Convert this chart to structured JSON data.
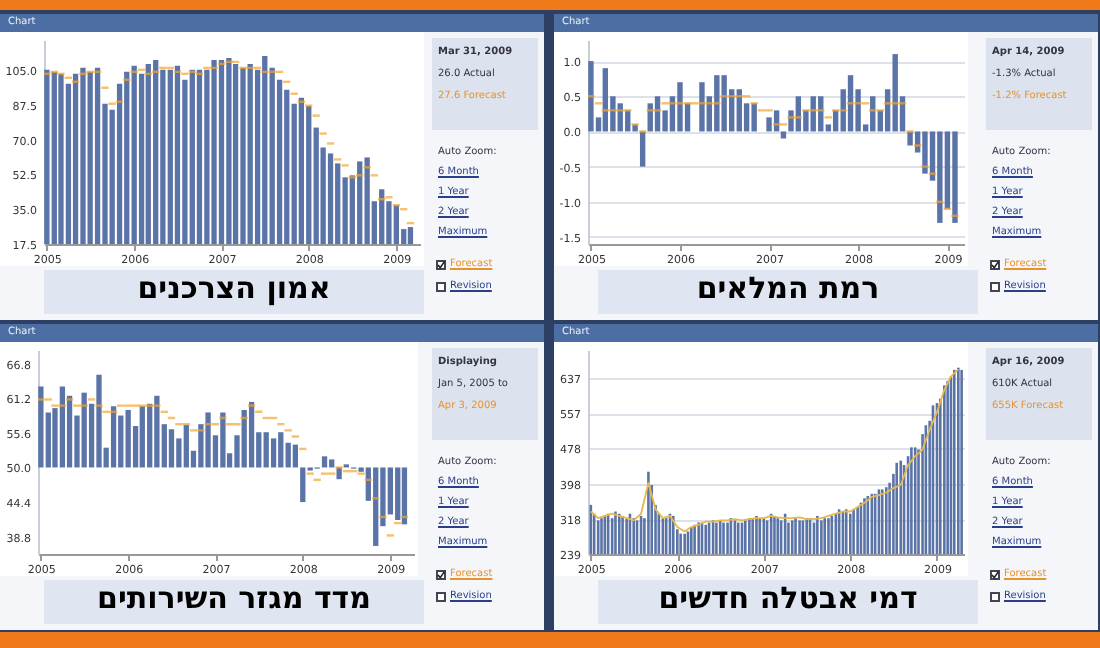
{
  "chart_data": [
    {
      "type": "bar",
      "title": "אמון הצרכנים",
      "x": [
        "2005-01",
        "2005-02",
        "2005-03",
        "2005-04",
        "2005-05",
        "2005-06",
        "2005-07",
        "2005-08",
        "2005-09",
        "2005-10",
        "2005-11",
        "2005-12",
        "2006-01",
        "2006-02",
        "2006-03",
        "2006-04",
        "2006-05",
        "2006-06",
        "2006-07",
        "2006-08",
        "2006-09",
        "2006-10",
        "2006-11",
        "2006-12",
        "2007-01",
        "2007-02",
        "2007-03",
        "2007-04",
        "2007-05",
        "2007-06",
        "2007-07",
        "2007-08",
        "2007-09",
        "2007-10",
        "2007-11",
        "2007-12",
        "2008-01",
        "2008-02",
        "2008-03",
        "2008-04",
        "2008-05",
        "2008-06",
        "2008-07",
        "2008-08",
        "2008-09",
        "2008-10",
        "2008-11",
        "2008-12",
        "2009-01",
        "2009-02",
        "2009-03"
      ],
      "series": [
        {
          "color": "#5b74a8",
          "values": [
            105,
            104,
            103,
            98,
            103,
            106,
            104,
            106,
            88,
            85,
            98,
            104,
            107,
            103,
            108,
            110,
            105,
            105,
            107,
            100,
            105,
            105,
            105,
            110,
            110,
            111,
            108,
            106,
            108,
            105,
            112,
            106,
            100,
            95,
            88,
            91,
            87,
            76,
            66,
            63,
            58,
            51,
            52,
            59,
            61,
            39,
            45,
            39,
            37,
            25,
            26
          ]
        },
        {
          "type": "scatter",
          "color": "#f2a530",
          "values": [
            103,
            104,
            103,
            101,
            99,
            103,
            104,
            104,
            96,
            88,
            89,
            100,
            104,
            105,
            103,
            104,
            106,
            106,
            104,
            103,
            104,
            103,
            106,
            106,
            108,
            109,
            109,
            106,
            106,
            106,
            104,
            104,
            104,
            99,
            93,
            89,
            87,
            82,
            73,
            68,
            60,
            57,
            51,
            52,
            56,
            52,
            40,
            41,
            37,
            35,
            28
          ]
        }
      ],
      "xlim": [
        "2004-12-20",
        "2009-04-10"
      ],
      "xticks": [
        "2005",
        "2006",
        "2007",
        "2008",
        "2009"
      ],
      "ylim": [
        17.5,
        120
      ],
      "yticks": [
        17.5,
        {
          "value": 35,
          "label": "35.0"
        },
        52.5,
        {
          "value": 70,
          "label": "70.0"
        },
        87.5,
        {
          "value": 105,
          "label": "105.0"
        }
      ],
      "annotations": [
        "Chart",
        "Mar 31, 2009",
        "26.0 Actual",
        "27.6 Forecast",
        "Auto Zoom:",
        "6 Month",
        "1 Year",
        "2 Year",
        "Maximum",
        "Forecast",
        "Revision"
      ]
    },
    {
      "type": "bar",
      "title": "רמת המלאים",
      "x": [
        "2005-01",
        "2005-02",
        "2005-03",
        "2005-04",
        "2005-05",
        "2005-06",
        "2005-07",
        "2005-08",
        "2005-09",
        "2005-10",
        "2005-11",
        "2005-12",
        "2006-01",
        "2006-02",
        "2006-03",
        "2006-04",
        "2006-05",
        "2006-06",
        "2006-07",
        "2006-08",
        "2006-09",
        "2006-10",
        "2006-11",
        "2006-12",
        "2007-01",
        "2007-02",
        "2007-03",
        "2007-04",
        "2007-05",
        "2007-06",
        "2007-07",
        "2007-08",
        "2007-09",
        "2007-10",
        "2007-11",
        "2007-12",
        "2008-01",
        "2008-02",
        "2008-03",
        "2008-04",
        "2008-05",
        "2008-06",
        "2008-07",
        "2008-08",
        "2008-09",
        "2008-10",
        "2008-11",
        "2008-12",
        "2009-01",
        "2009-02"
      ],
      "series": [
        {
          "color": "#5b74a8",
          "values": [
            1.0,
            0.2,
            0.9,
            0.5,
            0.4,
            0.3,
            0.1,
            -0.5,
            0.4,
            0.5,
            0.3,
            0.5,
            0.7,
            0.4,
            0.0,
            0.7,
            0.5,
            0.8,
            0.8,
            0.6,
            0.6,
            0.4,
            0.4,
            0.0,
            0.2,
            0.3,
            -0.1,
            0.3,
            0.5,
            0.3,
            0.5,
            0.5,
            0.1,
            0.3,
            0.6,
            0.8,
            0.6,
            0.1,
            0.5,
            0.3,
            0.6,
            1.1,
            0.5,
            -0.2,
            -0.3,
            -0.6,
            -0.7,
            -1.3,
            -1.1,
            -1.3
          ]
        },
        {
          "type": "scatter",
          "color": "#f2a530",
          "values": [
            0.5,
            0.4,
            0.3,
            0.3,
            0.3,
            0.3,
            0.1,
            0.0,
            0.3,
            0.3,
            0.4,
            0.4,
            0.4,
            0.4,
            0.4,
            0.4,
            0.4,
            0.4,
            0.5,
            0.5,
            0.5,
            0.5,
            0.4,
            0.3,
            0.3,
            0.1,
            0.1,
            0.2,
            0.2,
            0.3,
            0.3,
            0.3,
            0.2,
            0.3,
            0.3,
            0.4,
            0.4,
            0.4,
            0.3,
            0.3,
            0.4,
            0.4,
            0.4,
            0.0,
            -0.2,
            -0.5,
            -0.6,
            -1.0,
            -1.1,
            -1.2
          ]
        }
      ],
      "xlim": [
        "2004-12-20",
        "2009-03-10"
      ],
      "xticks": [
        "2005",
        "2006",
        "2007",
        "2008",
        "2009"
      ],
      "ylim": [
        -1.6,
        1.3
      ],
      "yticks": [
        -1.5,
        {
          "value": -1,
          "label": "-1.0"
        },
        -0.5,
        {
          "value": 0,
          "label": "0.0"
        },
        0.5,
        {
          "value": 1,
          "label": "1.0"
        }
      ],
      "grid": "y",
      "annotations": [
        "Chart",
        "Apr 14, 2009",
        "-1.3% Actual",
        "-1.2% Forecast",
        "Auto Zoom:",
        "6 Month",
        "1 Year",
        "2 Year",
        "Maximum",
        "Forecast",
        "Revision"
      ]
    },
    {
      "type": "bar",
      "title": "מדד מגזר השירותים",
      "x": [
        "2005-01",
        "2005-02",
        "2005-03",
        "2005-04",
        "2005-05",
        "2005-06",
        "2005-07",
        "2005-08",
        "2005-09",
        "2005-10",
        "2005-11",
        "2005-12",
        "2006-01",
        "2006-02",
        "2006-03",
        "2006-04",
        "2006-05",
        "2006-06",
        "2006-07",
        "2006-08",
        "2006-09",
        "2006-10",
        "2006-11",
        "2006-12",
        "2007-01",
        "2007-02",
        "2007-03",
        "2007-04",
        "2007-05",
        "2007-06",
        "2007-07",
        "2007-08",
        "2007-09",
        "2007-10",
        "2007-11",
        "2007-12",
        "2008-01",
        "2008-02",
        "2008-03",
        "2008-04",
        "2008-05",
        "2008-06",
        "2008-07",
        "2008-08",
        "2008-09",
        "2008-10",
        "2008-11",
        "2008-12",
        "2009-01",
        "2009-02",
        "2009-03"
      ],
      "series": [
        {
          "color": "#5b74a8",
          "base": [
            50,
            50,
            50,
            50,
            50,
            50,
            50,
            50,
            50,
            50,
            50,
            50,
            50,
            50,
            50,
            50,
            50,
            50,
            50,
            50,
            50,
            50,
            50,
            50,
            50,
            50,
            50,
            50,
            50,
            50,
            50,
            50,
            50,
            50,
            50,
            50,
            50,
            50,
            50,
            50,
            50,
            50,
            50,
            50,
            50,
            50,
            50,
            50,
            50,
            50,
            50
          ],
          "values": [
            13.1,
            8.9,
            9.6,
            13.1,
            11.6,
            8.4,
            12.1,
            10.3,
            15.0,
            3.2,
            9.9,
            8.4,
            9.3,
            6.7,
            9.9,
            10.3,
            11.6,
            7.0,
            6.2,
            4.7,
            6.9,
            2.7,
            7.0,
            8.9,
            5.2,
            8.9,
            2.3,
            5.2,
            9.3,
            10.6,
            5.7,
            5.7,
            4.7,
            5.7,
            4.0,
            3.7,
            -5.6,
            -0.5,
            -0.2,
            1.8,
            1.3,
            -1.9,
            0.5,
            -0.2,
            -0.7,
            -5.4,
            -12.7,
            -9.5,
            -7.6,
            -8.5,
            -9.2
          ]
        },
        {
          "type": "scatter",
          "color": "#f2a530",
          "values": [
            61,
            61,
            60,
            60,
            61,
            60,
            60,
            61,
            60,
            59,
            59,
            60,
            60,
            60,
            60,
            60,
            60,
            59,
            58,
            57,
            57,
            56,
            56,
            57,
            57,
            58,
            57,
            57,
            58,
            60,
            59,
            58,
            58,
            57,
            56,
            55,
            53,
            49,
            48,
            49,
            49,
            50,
            49.4,
            49.4,
            49,
            48,
            45,
            42,
            39,
            41,
            42
          ]
        }
      ],
      "xlim": [
        "2004-12-20",
        "2009-04-10"
      ],
      "xticks": [
        "2005",
        "2006",
        "2007",
        "2008",
        "2009"
      ],
      "ylim": [
        36,
        69
      ],
      "yticks": [
        38.8,
        44.4,
        {
          "value": 50,
          "label": "50.0"
        },
        55.6,
        61.2,
        66.8
      ],
      "annotations": [
        "Chart",
        "Displaying",
        "Jan 5, 2005 to",
        "Apr 3, 2009",
        "Auto Zoom:",
        "6 Month",
        "1 Year",
        "2 Year",
        "Maximum",
        "Forecast",
        "Revision"
      ]
    },
    {
      "type": "bar",
      "title": "דמי אבטלה חדשים",
      "x": [
        "2005-01-01",
        "2005-01-15",
        "2005-02-01",
        "2005-02-15",
        "2005-03-01",
        "2005-03-15",
        "2005-04-01",
        "2005-04-15",
        "2005-05-01",
        "2005-05-15",
        "2005-06-01",
        "2005-06-15",
        "2005-07-01",
        "2005-07-15",
        "2005-08-01",
        "2005-08-15",
        "2005-09-01",
        "2005-09-15",
        "2005-10-01",
        "2005-10-15",
        "2005-11-01",
        "2005-11-15",
        "2005-12-01",
        "2005-12-15",
        "2006-01-01",
        "2006-01-15",
        "2006-02-01",
        "2006-02-15",
        "2006-03-01",
        "2006-03-15",
        "2006-04-01",
        "2006-04-15",
        "2006-05-01",
        "2006-05-15",
        "2006-06-01",
        "2006-06-15",
        "2006-07-01",
        "2006-07-15",
        "2006-08-01",
        "2006-08-15",
        "2006-09-01",
        "2006-09-15",
        "2006-10-01",
        "2006-10-15",
        "2006-11-01",
        "2006-11-15",
        "2006-12-01",
        "2006-12-15",
        "2007-01-01",
        "2007-01-15",
        "2007-02-01",
        "2007-02-15",
        "2007-03-01",
        "2007-03-15",
        "2007-04-01",
        "2007-04-15",
        "2007-05-01",
        "2007-05-15",
        "2007-06-01",
        "2007-06-15",
        "2007-07-01",
        "2007-07-15",
        "2007-08-01",
        "2007-08-15",
        "2007-09-01",
        "2007-09-15",
        "2007-10-01",
        "2007-10-15",
        "2007-11-01",
        "2007-11-15",
        "2007-12-01",
        "2007-12-15",
        "2008-01-01",
        "2008-01-15",
        "2008-02-01",
        "2008-02-15",
        "2008-03-01",
        "2008-03-15",
        "2008-04-01",
        "2008-04-15",
        "2008-05-01",
        "2008-05-15",
        "2008-06-01",
        "2008-06-15",
        "2008-07-01",
        "2008-07-15",
        "2008-08-01",
        "2008-08-15",
        "2008-09-01",
        "2008-09-15",
        "2008-10-01",
        "2008-10-15",
        "2008-11-01",
        "2008-11-15",
        "2008-12-01",
        "2008-12-15",
        "2009-01-01",
        "2009-01-15",
        "2009-02-01",
        "2009-02-15",
        "2009-03-01",
        "2009-03-15",
        "2009-04-01",
        "2009-04-15"
      ],
      "series": [
        {
          "color": "#5b74a8",
          "values": [
            350,
            330,
            315,
            320,
            325,
            330,
            320,
            335,
            330,
            325,
            318,
            330,
            320,
            315,
            325,
            320,
            425,
            395,
            350,
            330,
            320,
            320,
            330,
            325,
            295,
            285,
            285,
            290,
            300,
            305,
            310,
            310,
            305,
            310,
            315,
            310,
            315,
            310,
            310,
            320,
            315,
            310,
            310,
            315,
            320,
            320,
            325,
            320,
            320,
            315,
            330,
            325,
            320,
            315,
            330,
            310,
            315,
            320,
            315,
            315,
            320,
            320,
            310,
            325,
            315,
            320,
            320,
            325,
            330,
            340,
            335,
            340,
            330,
            340,
            345,
            355,
            365,
            370,
            375,
            375,
            385,
            385,
            390,
            400,
            420,
            445,
            450,
            440,
            460,
            480,
            480,
            475,
            510,
            530,
            540,
            575,
            580,
            590,
            620,
            630,
            640,
            655,
            660,
            655
          ]
        },
        {
          "type": "line",
          "color": "#e8b84a",
          "x": [
            "2005-01",
            "2005-02",
            "2005-03",
            "2005-04",
            "2005-05",
            "2005-06",
            "2005-07",
            "2005-08",
            "2005-09",
            "2005-10",
            "2005-11",
            "2005-12",
            "2006-01",
            "2006-02",
            "2006-03",
            "2006-04",
            "2006-05",
            "2006-06",
            "2006-07",
            "2006-08",
            "2006-09",
            "2006-10",
            "2006-11",
            "2006-12",
            "2007-01",
            "2007-02",
            "2007-03",
            "2007-04",
            "2007-05",
            "2007-06",
            "2007-07",
            "2007-08",
            "2007-09",
            "2007-10",
            "2007-11",
            "2007-12",
            "2008-01",
            "2008-02",
            "2008-03",
            "2008-04",
            "2008-05",
            "2008-06",
            "2008-07",
            "2008-08",
            "2008-09",
            "2008-10",
            "2008-11",
            "2008-12",
            "2009-01",
            "2009-02",
            "2009-03",
            "2009-04"
          ],
          "values": [
            335,
            320,
            325,
            330,
            325,
            320,
            315,
            330,
            400,
            340,
            320,
            325,
            300,
            290,
            300,
            305,
            312,
            312,
            315,
            315,
            318,
            315,
            318,
            320,
            320,
            325,
            322,
            320,
            320,
            322,
            318,
            318,
            320,
            325,
            330,
            335,
            335,
            345,
            355,
            368,
            372,
            378,
            388,
            395,
            440,
            460,
            475,
            520,
            560,
            610,
            640,
            657
          ]
        }
      ],
      "xlim": [
        "2004-12-20",
        "2009-04-25"
      ],
      "xticks": [
        "2005",
        "2006",
        "2007",
        "2008",
        "2009"
      ],
      "ylim": [
        239,
        700
      ],
      "yticks": [
        239,
        318,
        398,
        478,
        557,
        637
      ],
      "grid": "y",
      "annotations": [
        "Chart",
        "Apr 16, 2009",
        "610K Actual",
        "655K Forecast",
        "Auto Zoom:",
        "6 Month",
        "1 Year",
        "2 Year",
        "Maximum",
        "Forecast",
        "Revision"
      ]
    }
  ]
}
